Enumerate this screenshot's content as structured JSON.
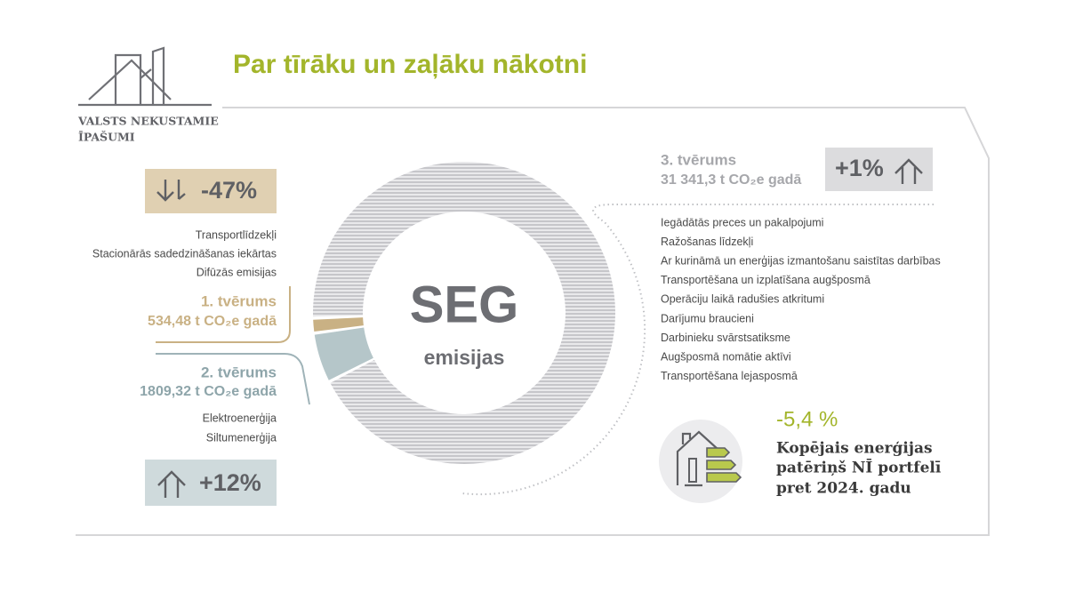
{
  "header": {
    "logo_lines": [
      "VALSTS NEKUSTAMIE",
      "ĪPAŠUMI"
    ],
    "title": "Par tīrāku un zaļāku nākotni"
  },
  "chart_data": {
    "type": "donut",
    "center_title": "SEG",
    "center_subtitle": "emisijas",
    "categories": [
      "1. tvērums",
      "2. tvērums",
      "3. tvērums"
    ],
    "values": [
      534.48,
      1809.32,
      31341.3
    ],
    "value_labels": [
      "534,48 t CO₂e gadā",
      "1809,32 t CO₂e gadā",
      "31 341,3 t CO₂e gadā"
    ],
    "colors": [
      "#c9b184",
      "#b5c6c9",
      "#c6c6ca"
    ]
  },
  "scope1": {
    "change": "-47%",
    "items": [
      "Transportlīdzekļi",
      "Stacionārās sadedzināšanas iekārtas",
      "Difūzās emisijas"
    ]
  },
  "scope2": {
    "change": "+12%",
    "items": [
      "Elektroenerģija",
      "Siltumenerģija"
    ]
  },
  "scope3": {
    "change": "+1%",
    "items": [
      "Iegādātās preces un pakalpojumi",
      "Ražošanas līdzekļi",
      "Ar kurināmā un enerģijas izmantošanu saistītas darbības",
      "Transportēšana un izplatīšana augšposmā",
      "Operāciju laikā radušies atkritumi",
      "Darījumu braucieni",
      "Darbinieku svārstsatiksme",
      "Augšposmā nomātie aktīvi",
      "Transportēšana lejasposmā"
    ]
  },
  "energy": {
    "change": "-5,4 %",
    "lines": [
      "Kopējais enerģijas",
      "patēriņš NĪ portfelī",
      "pret 2024. gadu"
    ]
  }
}
